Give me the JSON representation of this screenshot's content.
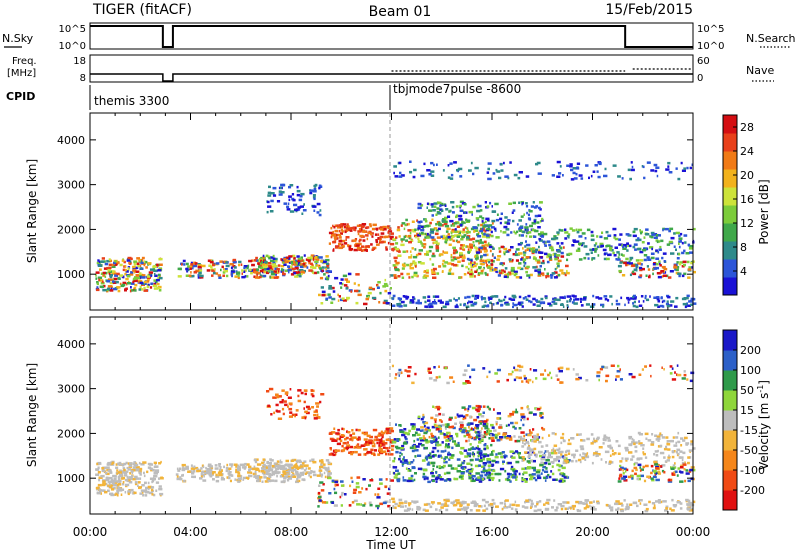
{
  "header": {
    "radar": "TIGER (fitACF)",
    "beam": "Beam 01",
    "date": "15/Feb/2015"
  },
  "strips": {
    "nsky_label": "N.Sky",
    "nsky_ticks": [
      "10^5",
      "10^0"
    ],
    "nsearch_label": "N.Search",
    "nsearch_ticks": [
      "10^5",
      "10^0"
    ],
    "freq_label_1": "Freq.",
    "freq_label_2": "[MHz]",
    "freq_ticks": [
      "18",
      "8"
    ],
    "nave_label": "Nave",
    "nave_ticks": [
      "60",
      "0"
    ],
    "cpid_label": "CPID",
    "cpid_segments": [
      {
        "start_hour": 0,
        "name": "themis 3300"
      },
      {
        "start_hour": 12,
        "name": "tbjmode7pulse -8600"
      }
    ]
  },
  "chart_data": [
    {
      "type": "heatmap",
      "name": "power",
      "ylabel": "Slant Range [km]",
      "xlabel": "",
      "y_ticks": [
        "1000",
        "2000",
        "3000",
        "4000"
      ],
      "y_tick_values": [
        1000,
        2000,
        3000,
        4000
      ],
      "ylim": [
        200,
        4600
      ],
      "xlim_hours": [
        0,
        24
      ],
      "colorbar": {
        "label": "Power [dB]",
        "ticks": [
          "4",
          "8",
          "12",
          "16",
          "20",
          "24",
          "28"
        ],
        "tick_values": [
          4,
          8,
          12,
          16,
          20,
          24,
          28
        ],
        "range": [
          0,
          30
        ],
        "colors": [
          "#1a12d6",
          "#2c55d8",
          "#2e8a8a",
          "#3fa84a",
          "#7ccc3a",
          "#cde33a",
          "#f2b21c",
          "#f07a16",
          "#e8401a",
          "#d40e12"
        ]
      }
    },
    {
      "type": "heatmap",
      "name": "velocity",
      "ylabel": "Slant Range [km]",
      "xlabel": "Time UT",
      "y_ticks": [
        "1000",
        "2000",
        "3000",
        "4000"
      ],
      "y_tick_values": [
        1000,
        2000,
        3000,
        4000
      ],
      "ylim": [
        200,
        4600
      ],
      "xlim_hours": [
        0,
        24
      ],
      "x_ticks": [
        "00:00",
        "04:00",
        "08:00",
        "12:00",
        "16:00",
        "20:00",
        "00:00"
      ],
      "x_tick_hours": [
        0,
        4,
        8,
        12,
        16,
        20,
        24
      ],
      "colorbar": {
        "label_main": "Velocity [m s",
        "label_exp": "-1",
        "label_end": "]",
        "ticks": [
          "-200",
          "-100",
          "-50",
          "-15",
          "15",
          "50",
          "100",
          "200"
        ],
        "colors": [
          "#e01010",
          "#f04a14",
          "#f5861a",
          "#f2b43a",
          "#bdbdbd",
          "#8fd63a",
          "#2f9a4a",
          "#2c60c8",
          "#1a18c8"
        ]
      }
    }
  ]
}
